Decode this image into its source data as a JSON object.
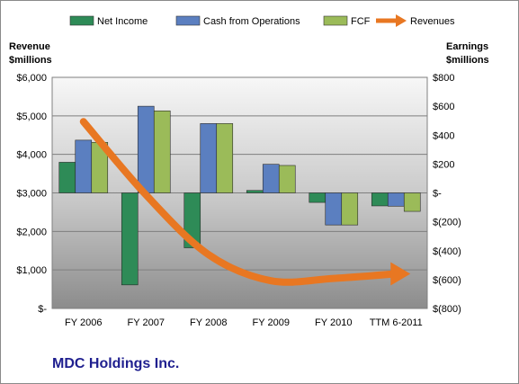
{
  "chart_data": {
    "type": "bar",
    "categories": [
      "FY 2006",
      "FY 2007",
      "FY 2008",
      "FY 2009",
      "FY 2010",
      "TTM 6-2011"
    ],
    "series": [
      {
        "name": "Net Income",
        "axis": "right",
        "color": "#2e8b57",
        "values": [
          212,
          -637,
          -380,
          17,
          -66,
          -90
        ]
      },
      {
        "name": "Cash from Operations",
        "axis": "right",
        "color": "#5b7fc0",
        "values": [
          365,
          600,
          480,
          198,
          -222,
          -92
        ]
      },
      {
        "name": "FCF",
        "axis": "right",
        "color": "#9bbb59",
        "values": [
          350,
          568,
          480,
          190,
          -222,
          -128
        ]
      },
      {
        "name": "Revenues",
        "axis": "left",
        "type": "line",
        "color": "#e87722",
        "values": [
          4850,
          2950,
          1400,
          720,
          780,
          900
        ]
      }
    ],
    "left_axis": {
      "title_line1": "Revenue",
      "title_line2": "$millions",
      "ylim": [
        0,
        6000
      ],
      "tick_labels": [
        "$-",
        "$1,000",
        "$2,000",
        "$3,000",
        "$4,000",
        "$5,000",
        "$6,000"
      ]
    },
    "right_axis": {
      "title_line1": "Earnings",
      "title_line2": "$millions",
      "ylim": [
        -800,
        800
      ],
      "tick_labels": [
        "$(800)",
        "$(600)",
        "$(400)",
        "$(200)",
        "$-",
        "$200",
        "$400",
        "$600",
        "$800"
      ]
    },
    "grid": true,
    "legend_position": "top",
    "company": "MDC Holdings Inc."
  }
}
